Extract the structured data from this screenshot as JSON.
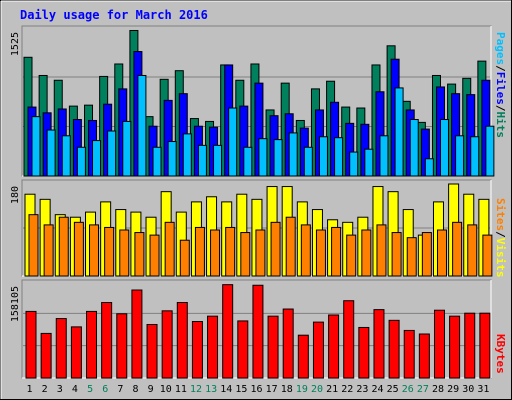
{
  "chart_data": {
    "type": "bar",
    "title": "Daily usage for March 2016",
    "days": [
      "1",
      "2",
      "3",
      "4",
      "5",
      "6",
      "7",
      "8",
      "9",
      "10",
      "11",
      "12",
      "13",
      "14",
      "15",
      "16",
      "17",
      "18",
      "19",
      "20",
      "21",
      "22",
      "23",
      "24",
      "25",
      "26",
      "27",
      "28",
      "29",
      "30",
      "31"
    ],
    "weekend_days": [
      5,
      6,
      12,
      13,
      19,
      20,
      26,
      27
    ],
    "colors": {
      "hits": "#00805c",
      "files": "#0000ff",
      "pages": "#00c0ff",
      "visits": "#ffff00",
      "sites": "#ff8000",
      "kbytes": "#ff0000",
      "weekday_label": "#000000",
      "weekend_label": "#00805c",
      "title": "#0000ff"
    },
    "panels": {
      "hits_files_pages": {
        "max_label": "1525",
        "ymax": 1525,
        "legend": {
          "pages": "Pages",
          "files": "Files",
          "hits": "Hits",
          "sep": "/"
        },
        "series": [
          {
            "key": "hits",
            "values": [
              1240,
              1050,
              1000,
              730,
              740,
              1040,
              1170,
              1520,
              620,
              1010,
              1100,
              600,
              570,
              1160,
              1000,
              1170,
              690,
              970,
              580,
              910,
              990,
              720,
              710,
              1160,
              1360,
              780,
              560,
              1050,
              960,
              1020,
              1200
            ]
          },
          {
            "key": "files",
            "values": [
              720,
              660,
              700,
              590,
              580,
              750,
              910,
              1300,
              520,
              790,
              860,
              520,
              510,
              1160,
              730,
              970,
              630,
              650,
              500,
              690,
              770,
              550,
              540,
              880,
              1220,
              690,
              490,
              930,
              860,
              850,
              1000
            ]
          },
          {
            "key": "pages",
            "values": [
              620,
              480,
              420,
              300,
              370,
              470,
              570,
              1050,
              300,
              360,
              440,
              320,
              320,
              710,
              300,
              390,
              380,
              450,
              300,
              410,
              400,
              250,
              280,
              420,
              920,
              590,
              180,
              590,
              420,
              410,
              520
            ]
          }
        ]
      },
      "visits_sites": {
        "max_label": "180",
        "ymax": 180,
        "legend": {
          "sites": "Sites",
          "visits": "Visits",
          "sep": "/"
        },
        "series": [
          {
            "key": "visits",
            "values": [
              160,
              150,
              120,
              115,
              125,
              145,
              130,
              125,
              115,
              165,
              125,
              145,
              155,
              145,
              160,
              150,
              175,
              175,
              145,
              130,
              110,
              105,
              115,
              175,
              165,
              130,
              80,
              145,
              180,
              160,
              150
            ]
          },
          {
            "key": "sites",
            "values": [
              120,
              100,
              115,
              105,
              100,
              95,
              90,
              85,
              80,
              105,
              70,
              95,
              90,
              95,
              85,
              90,
              105,
              115,
              100,
              90,
              95,
              80,
              90,
              100,
              85,
              75,
              85,
              90,
              105,
              100,
              80
            ]
          }
        ]
      },
      "kbytes": {
        "max_label": "158105",
        "ymax": 158105,
        "legend": {
          "kbytes": "KBytes"
        },
        "series": [
          {
            "key": "kbytes",
            "values": [
              112000,
              75000,
              100000,
              86000,
              112000,
              127000,
              108000,
              148000,
              90000,
              113000,
              127000,
              95000,
              104000,
              157000,
              96000,
              156000,
              104000,
              116000,
              72000,
              94000,
              106000,
              130000,
              85000,
              115000,
              97000,
              80000,
              74000,
              114000,
              104000,
              109000,
              109000
            ]
          }
        ]
      }
    }
  }
}
